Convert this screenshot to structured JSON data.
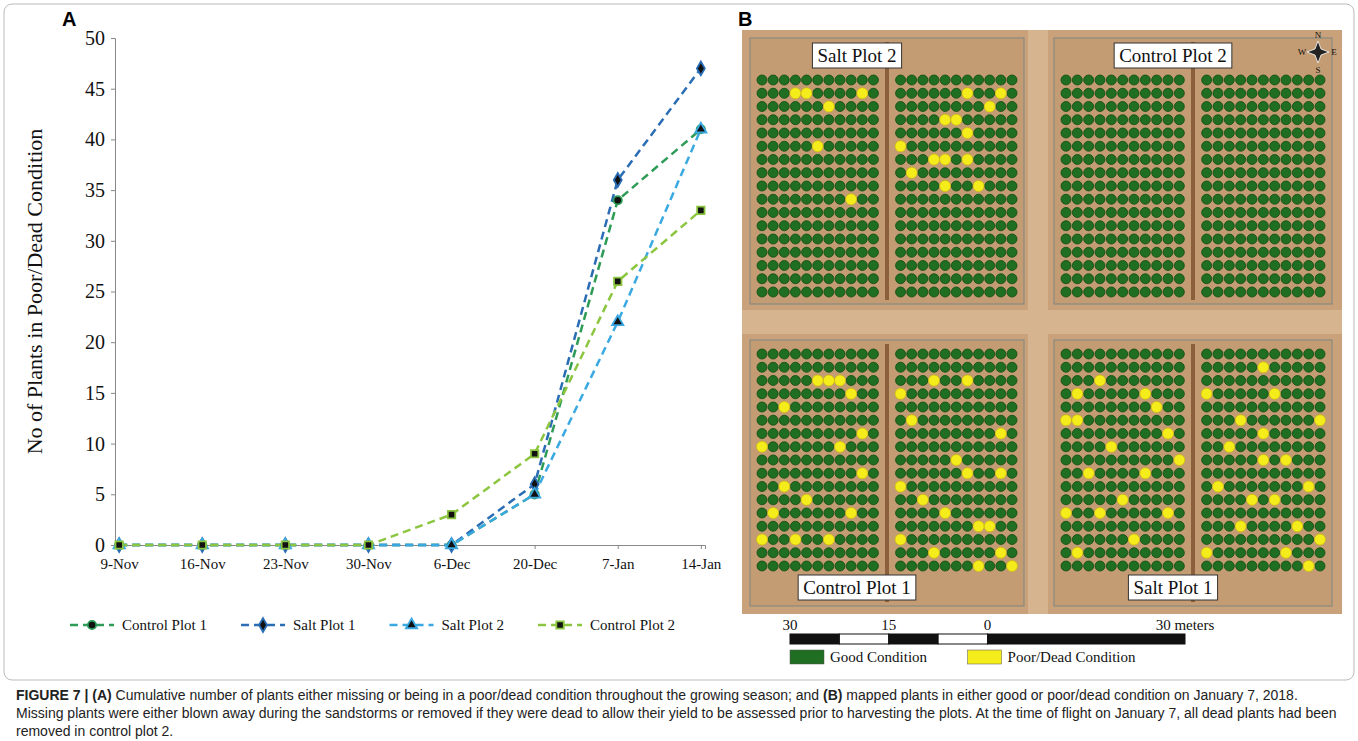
{
  "chart_data": {
    "type": "line",
    "y_label": "No of Plants in Poor/Dead Condition",
    "categories": [
      "9-Nov",
      "16-Nov",
      "23-Nov",
      "30-Nov",
      "6-Dec",
      "20-Dec",
      "7-Jan",
      "14-Jan"
    ],
    "series": [
      {
        "name": "Control Plot 1",
        "color": "#2e9b57",
        "marker": "circle",
        "line_style": "dashed",
        "values": [
          0,
          0,
          0,
          0,
          0,
          5,
          34,
          41
        ]
      },
      {
        "name": "Salt Plot 1",
        "color": "#2a6db5",
        "marker": "diamond",
        "line_style": "dashed",
        "values": [
          0,
          0,
          0,
          0,
          0,
          6,
          36,
          47
        ]
      },
      {
        "name": "Salt Plot 2",
        "color": "#3aa9e2",
        "marker": "triangle",
        "line_style": "dashed",
        "values": [
          0,
          0,
          0,
          0,
          0,
          5,
          22,
          41
        ]
      },
      {
        "name": "Control Plot 2",
        "color": "#8cc640",
        "marker": "square",
        "line_style": "dashed",
        "values": [
          0,
          0,
          0,
          0,
          3,
          9,
          26,
          33
        ]
      }
    ],
    "ylim": [
      0,
      50
    ],
    "yticks": [
      0,
      5,
      10,
      15,
      20,
      25,
      30,
      35,
      40,
      45,
      50
    ],
    "grid": false,
    "legend": "bottom"
  },
  "panel_labels": [
    "A",
    "B"
  ],
  "map": {
    "rows": 17,
    "columns": 22,
    "plots": [
      {
        "label": "Salt Plot 2",
        "poor": [
          [
            1,
            3
          ],
          [
            1,
            4
          ],
          [
            1,
            9
          ],
          [
            1,
            17
          ],
          [
            1,
            20
          ],
          [
            2,
            6
          ],
          [
            3,
            15
          ],
          [
            3,
            16
          ],
          [
            2,
            19
          ],
          [
            4,
            17
          ],
          [
            5,
            5
          ],
          [
            6,
            14
          ],
          [
            6,
            15
          ],
          [
            6,
            17
          ],
          [
            7,
            12
          ],
          [
            8,
            15
          ],
          [
            8,
            18
          ],
          [
            9,
            8
          ],
          [
            5,
            11
          ]
        ]
      },
      {
        "label": "Control Plot 2",
        "poor": []
      },
      {
        "label": "Control Plot 1",
        "poor": [
          [
            2,
            5
          ],
          [
            2,
            6
          ],
          [
            2,
            7
          ],
          [
            2,
            14
          ],
          [
            2,
            17
          ],
          [
            3,
            8
          ],
          [
            3,
            11
          ],
          [
            4,
            2
          ],
          [
            5,
            12
          ],
          [
            6,
            9
          ],
          [
            6,
            20
          ],
          [
            7,
            0
          ],
          [
            7,
            7
          ],
          [
            8,
            16
          ],
          [
            9,
            9
          ],
          [
            9,
            17
          ],
          [
            10,
            11
          ],
          [
            10,
            2
          ],
          [
            11,
            4
          ],
          [
            11,
            13
          ],
          [
            12,
            8
          ],
          [
            12,
            15
          ],
          [
            13,
            18
          ],
          [
            13,
            19
          ],
          [
            14,
            0
          ],
          [
            14,
            3
          ],
          [
            14,
            6
          ],
          [
            14,
            11
          ],
          [
            15,
            14
          ],
          [
            15,
            20
          ],
          [
            16,
            21
          ],
          [
            16,
            18
          ],
          [
            12,
            1
          ],
          [
            9,
            20
          ]
        ]
      },
      {
        "label": "Salt Plot 1",
        "poor": [
          [
            1,
            16
          ],
          [
            2,
            3
          ],
          [
            3,
            1
          ],
          [
            3,
            7
          ],
          [
            3,
            11
          ],
          [
            3,
            17
          ],
          [
            4,
            8
          ],
          [
            5,
            0
          ],
          [
            5,
            1
          ],
          [
            5,
            14
          ],
          [
            5,
            21
          ],
          [
            6,
            9
          ],
          [
            6,
            16
          ],
          [
            7,
            4
          ],
          [
            7,
            13
          ],
          [
            8,
            10
          ],
          [
            8,
            16
          ],
          [
            8,
            18
          ],
          [
            9,
            2
          ],
          [
            9,
            7
          ],
          [
            10,
            12
          ],
          [
            10,
            20
          ],
          [
            11,
            5
          ],
          [
            11,
            15
          ],
          [
            11,
            17
          ],
          [
            12,
            0
          ],
          [
            12,
            3
          ],
          [
            12,
            9
          ],
          [
            13,
            14
          ],
          [
            13,
            19
          ],
          [
            14,
            6
          ],
          [
            14,
            21
          ],
          [
            15,
            1
          ],
          [
            15,
            11
          ],
          [
            15,
            18
          ],
          [
            16,
            20
          ]
        ]
      }
    ],
    "compass": [
      "N",
      "E",
      "S",
      "W"
    ],
    "scale_bar": {
      "range": [
        -30,
        30
      ],
      "ticks": [
        {
          "value": -30,
          "label": "30"
        },
        {
          "value": -15,
          "label": "15"
        },
        {
          "value": 0,
          "label": "0"
        },
        {
          "value": 30,
          "label": "30 meters"
        }
      ]
    },
    "legend": [
      {
        "label": "Good Condition",
        "color": "#1f6e21"
      },
      {
        "label": "Poor/Dead Condition",
        "color": "#f5ec1c"
      }
    ]
  },
  "caption": [
    {
      "text": "FIGURE 7 | (A)",
      "bold": true
    },
    {
      "text": " Cumulative number of plants either missing or being in a poor/dead condition throughout the growing season; and ",
      "bold": false
    },
    {
      "text": "(B)",
      "bold": true
    },
    {
      "text": " mapped plants in either good or poor/dead condition on January 7, 2018. Missing plants were either blown away during the sandstorms or removed if they were dead to allow their yield to be assessed prior to harvesting the plots. At the time of flight on January 7, all dead plants had been removed in control plot 2.",
      "bold": false
    }
  ]
}
